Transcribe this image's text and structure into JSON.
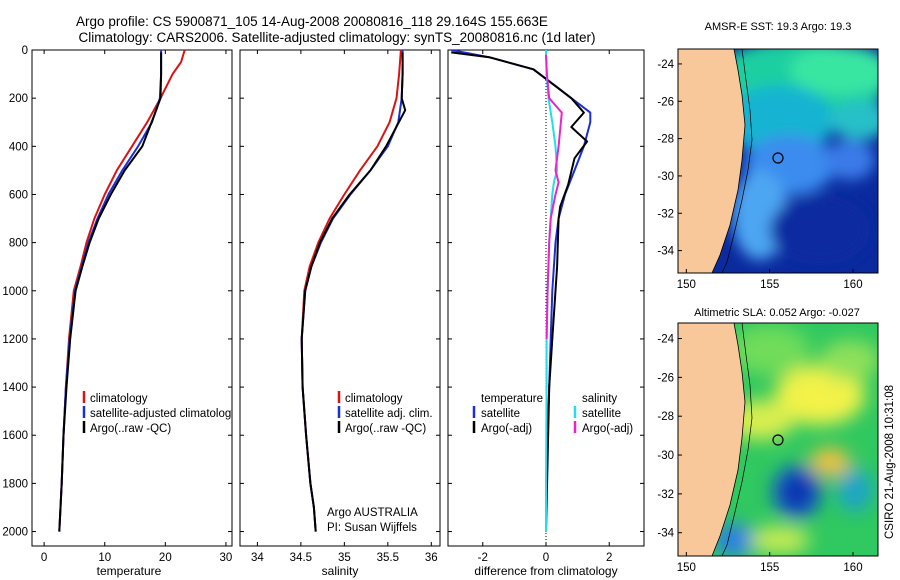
{
  "title_line1": "Argo profile: CS 5900871_105 14-Aug-2008 20080816_118 29.164S 155.663E",
  "title_line2": "Climatology: CARS2006. Satellite-adjusted climatology: synTS_20080816.nc (1d later)",
  "side_text": "CSIRO 21-Aug-2008 10:31:08",
  "colors": {
    "clim": "#dd1111",
    "sat": "#1a2fd6",
    "argo": "#000000",
    "sal_sat": "#22ddee",
    "sal_argo": "#ee22cc",
    "land": "#f8c89a"
  },
  "chart_data": [
    {
      "id": "temperature",
      "type": "line",
      "xlabel": "temperature",
      "ylabel": "",
      "xlim": [
        -2,
        31
      ],
      "ylim": [
        0,
        2060
      ],
      "y_reversed": true,
      "xticks": [
        0,
        10,
        20,
        30
      ],
      "yticks": [
        0,
        200,
        400,
        600,
        800,
        1000,
        1200,
        1400,
        1600,
        1800,
        2000
      ],
      "legend": [
        "climatology",
        "satellite-adjusted climatology",
        "Argo(..raw -QC)"
      ],
      "series": [
        {
          "name": "climatology",
          "color_key": "clim",
          "x": [
            23.2,
            22.6,
            21.2,
            19.2,
            17.0,
            14.5,
            12.0,
            10.0,
            8.3,
            7.0,
            6.0,
            4.9,
            4.1,
            3.6,
            3.2,
            2.9,
            2.7,
            2.5
          ],
          "y": [
            0,
            50,
            100,
            200,
            300,
            400,
            500,
            600,
            700,
            800,
            900,
            1000,
            1200,
            1400,
            1600,
            1800,
            1900,
            2000
          ]
        },
        {
          "name": "satellite-adjusted climatology",
          "color_key": "sat",
          "x": [
            19.3,
            19.3,
            19.3,
            19.1,
            17.8,
            15.5,
            12.9,
            10.6,
            8.8,
            7.3,
            6.2,
            5.1,
            4.2,
            3.6,
            3.2,
            2.9,
            2.7,
            2.5
          ],
          "y": [
            0,
            50,
            100,
            200,
            300,
            400,
            500,
            600,
            700,
            800,
            900,
            1000,
            1200,
            1400,
            1600,
            1800,
            1900,
            2000
          ]
        },
        {
          "name": "Argo(..raw -QC)",
          "color_key": "argo",
          "x": [
            19.3,
            19.3,
            19.3,
            19.2,
            18.5,
            16.2,
            13.3,
            11.0,
            9.0,
            7.5,
            6.3,
            5.2,
            4.3,
            3.7,
            3.2,
            2.9,
            2.7,
            2.5
          ],
          "y": [
            10,
            50,
            100,
            200,
            250,
            400,
            500,
            600,
            700,
            800,
            900,
            1000,
            1200,
            1400,
            1600,
            1800,
            1900,
            2000
          ]
        }
      ]
    },
    {
      "id": "salinity",
      "type": "line",
      "xlabel": "salinity",
      "ylabel": "",
      "xlim": [
        33.8,
        36.1
      ],
      "ylim": [
        0,
        2060
      ],
      "y_reversed": true,
      "xticks": [
        34,
        34.5,
        35,
        35.5,
        36
      ],
      "legend": [
        "climatology",
        "satellite adj. clim.",
        "Argo(..raw -QC)"
      ],
      "annotations": [
        "Argo AUSTRALIA",
        "PI: Susan Wijffels"
      ],
      "series": [
        {
          "name": "climatology",
          "color_key": "clim",
          "x": [
            35.65,
            35.63,
            35.6,
            35.52,
            35.38,
            35.18,
            35.0,
            34.83,
            34.7,
            34.6,
            34.54,
            34.51,
            34.52,
            34.56,
            34.61,
            34.65,
            34.67
          ],
          "y": [
            0,
            100,
            200,
            300,
            400,
            500,
            600,
            700,
            800,
            900,
            1000,
            1200,
            1400,
            1600,
            1800,
            1900,
            2000
          ]
        },
        {
          "name": "satellite adj. clim.",
          "color_key": "sat",
          "x": [
            35.67,
            35.67,
            35.66,
            35.62,
            35.5,
            35.3,
            35.07,
            34.87,
            34.73,
            34.62,
            34.55,
            34.51,
            34.52,
            34.56,
            34.61,
            34.65,
            34.67
          ],
          "y": [
            0,
            100,
            200,
            300,
            400,
            500,
            600,
            700,
            800,
            900,
            1000,
            1200,
            1400,
            1600,
            1800,
            1900,
            2000
          ]
        },
        {
          "name": "Argo(..raw -QC)",
          "color_key": "argo",
          "x": [
            35.67,
            35.67,
            35.66,
            35.7,
            35.48,
            35.3,
            35.06,
            34.86,
            34.72,
            34.62,
            34.55,
            34.51,
            34.52,
            34.56,
            34.61,
            34.65,
            34.67
          ],
          "y": [
            10,
            100,
            200,
            250,
            400,
            500,
            600,
            700,
            800,
            900,
            1000,
            1200,
            1400,
            1600,
            1800,
            1900,
            2000
          ]
        }
      ]
    },
    {
      "id": "difference",
      "type": "line",
      "xlabel": "difference from climatology",
      "ylabel": "",
      "xlim": [
        -3.1,
        3.1
      ],
      "ylim": [
        0,
        2060
      ],
      "y_reversed": true,
      "xticks": [
        -2,
        0,
        2
      ],
      "legend_temperature": {
        "title": "temperature",
        "items": [
          "satellite",
          "Argo(-adj)"
        ]
      },
      "legend_salinity": {
        "title": "salinity",
        "items": [
          "satellite",
          "Argo(-adj)"
        ]
      },
      "series": [
        {
          "name": "temperature satellite",
          "color_key": "sat",
          "x": [
            -3.0,
            -1.8,
            -0.4,
            0.3,
            0.8,
            1.4,
            1.4,
            1.2,
            0.9,
            0.6,
            0.4,
            0.3,
            0.2,
            0.15,
            0.1,
            0.05,
            0.0,
            0.0
          ],
          "y": [
            0,
            30,
            80,
            150,
            200,
            260,
            300,
            400,
            500,
            600,
            700,
            800,
            1000,
            1200,
            1400,
            1600,
            1800,
            2000
          ]
        },
        {
          "name": "temperature Argo(-adj)",
          "color_key": "argo",
          "x": [
            -3.0,
            -1.8,
            -0.4,
            0.3,
            0.8,
            1.2,
            0.8,
            1.3,
            0.9,
            0.7,
            0.45,
            0.4,
            0.35,
            0.3,
            0.2,
            0.1,
            0.05,
            0.0
          ],
          "y": [
            10,
            30,
            80,
            150,
            200,
            260,
            320,
            380,
            450,
            560,
            650,
            700,
            900,
            1000,
            1200,
            1400,
            1700,
            2000
          ]
        },
        {
          "name": "salinity satellite",
          "color_key": "sal_sat",
          "x": [
            0.0,
            0.02,
            0.08,
            0.2,
            0.3,
            0.35,
            0.25,
            0.2,
            0.15,
            0.1,
            0.05,
            0.02,
            0.02,
            0.01,
            0.0,
            0.0
          ],
          "y": [
            0,
            100,
            200,
            300,
            400,
            500,
            550,
            600,
            700,
            800,
            1000,
            1200,
            1400,
            1600,
            1800,
            2000
          ]
        },
        {
          "name": "salinity Argo(-adj)",
          "color_key": "sal_argo",
          "x": [
            0.0,
            0.03,
            0.1,
            0.5,
            0.4,
            0.3,
            0.4,
            0.3,
            0.15,
            0.1,
            0.05,
            0.02
          ],
          "y": [
            20,
            100,
            200,
            260,
            400,
            500,
            550,
            600,
            700,
            800,
            1000,
            1200
          ]
        }
      ]
    }
  ],
  "maps": [
    {
      "id": "sst",
      "title": "AMSR-E SST: 19.3 Argo: 19.3",
      "lon_range": [
        149.5,
        161.5
      ],
      "lat_range": [
        -35.2,
        -23.2
      ],
      "xticks": [
        150,
        155,
        160
      ],
      "yticks": [
        -24,
        -26,
        -28,
        -30,
        -32,
        -34
      ],
      "argo_position": [
        155.663,
        -29.164
      ]
    },
    {
      "id": "sla",
      "title": "Altimetric SLA: 0.052 Argo: -0.027",
      "lon_range": [
        149.5,
        161.5
      ],
      "lat_range": [
        -35.2,
        -23.2
      ],
      "xticks": [
        150,
        155,
        160
      ],
      "yticks": [
        -24,
        -26,
        -28,
        -30,
        -32,
        -34
      ],
      "argo_position": [
        155.663,
        -29.164
      ]
    }
  ]
}
